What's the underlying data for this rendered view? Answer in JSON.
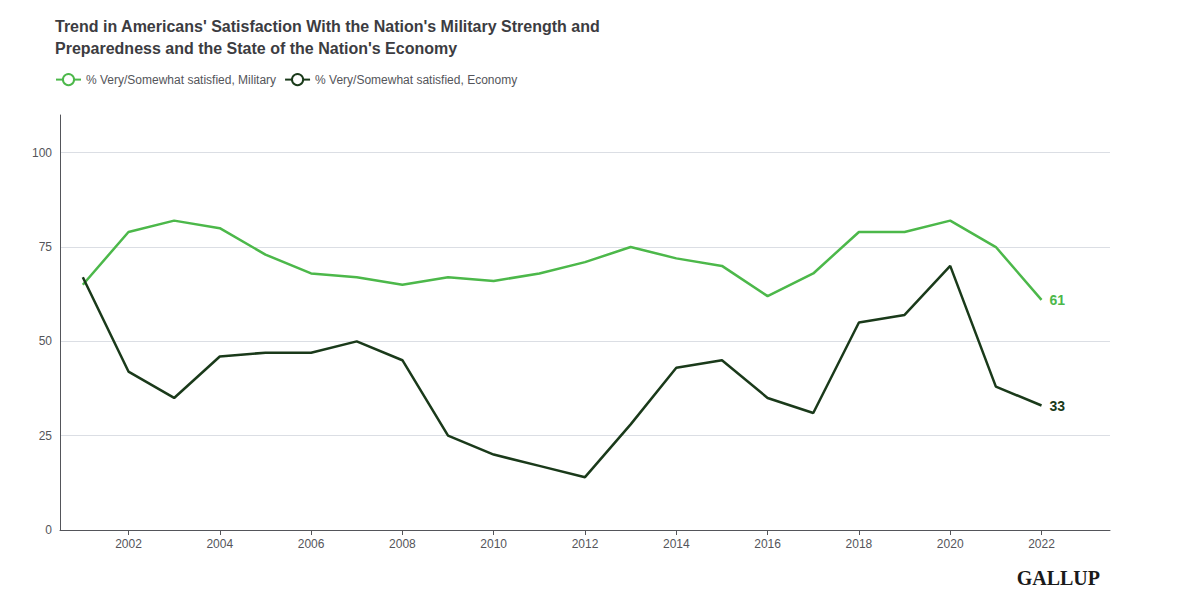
{
  "chart_data": {
    "type": "line",
    "title": "Trend in Americans' Satisfaction With the Nation's Military Strength and\nPreparedness and the State of the Nation's Economy",
    "x": [
      2001,
      2002,
      2003,
      2004,
      2005,
      2006,
      2007,
      2008,
      2009,
      2010,
      2011,
      2012,
      2013,
      2014,
      2015,
      2016,
      2017,
      2018,
      2019,
      2020,
      2021,
      2022
    ],
    "series": [
      {
        "name": "% Very/Somewhat satisfied, Military",
        "color": "#4cb84a",
        "values": [
          65,
          79,
          82,
          80,
          73,
          68,
          67,
          65,
          67,
          66,
          68,
          71,
          75,
          72,
          70,
          62,
          68,
          79,
          79,
          82,
          75,
          61
        ]
      },
      {
        "name": "% Very/Somewhat satisfied, Economy",
        "color": "#1a3a1a",
        "values": [
          67,
          42,
          35,
          46,
          47,
          47,
          50,
          45,
          25,
          20,
          17,
          14,
          28,
          43,
          45,
          35,
          31,
          55,
          57,
          70,
          38,
          33
        ]
      }
    ],
    "xlim": [
      2000.5,
      2023.5
    ],
    "xticks": [
      2002,
      2004,
      2006,
      2008,
      2010,
      2012,
      2014,
      2016,
      2018,
      2020,
      2022
    ],
    "ylim": [
      0,
      110
    ],
    "yticks": [
      0,
      25,
      50,
      75,
      100
    ],
    "grid": true,
    "legend": "upper left",
    "annotations": [
      {
        "text": "61",
        "x": 2022,
        "y": 61,
        "color": "#4cb84a"
      },
      {
        "text": "33",
        "x": 2022,
        "y": 33,
        "color": "#1a3a1a"
      },
      {
        "text": "GALLUP"
      }
    ]
  }
}
